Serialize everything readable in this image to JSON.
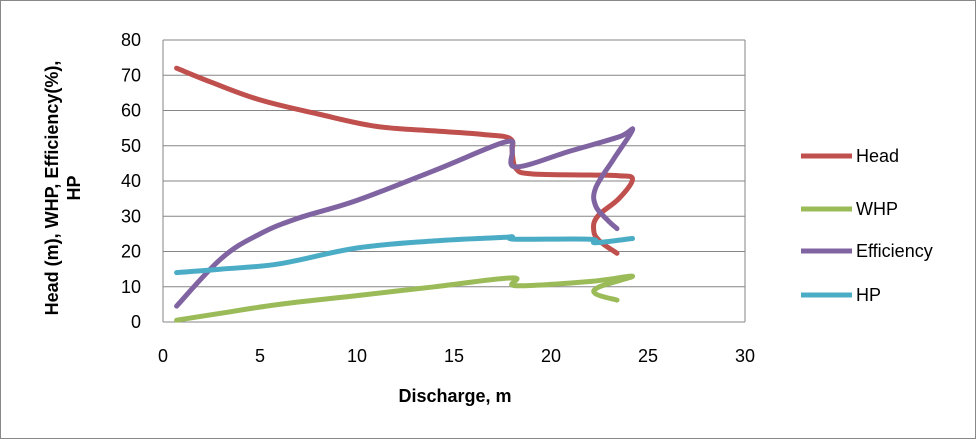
{
  "chart_data": {
    "type": "line",
    "title": "",
    "xlabel": "Discharge, m",
    "ylabel_line1": "Head (m), WHP,  Efficiency(%),",
    "ylabel_line2": "HP",
    "xlim": [
      0,
      30
    ],
    "ylim": [
      0,
      80
    ],
    "xticks": [
      0,
      5,
      10,
      15,
      20,
      25,
      30
    ],
    "yticks": [
      0,
      10,
      20,
      30,
      40,
      50,
      60,
      70,
      80
    ],
    "grid": "horizontal",
    "legend_position": "right",
    "series": [
      {
        "name": "Head",
        "color": "#c0504d",
        "x": [
          0.7,
          2.5,
          5,
          8,
          11,
          14,
          16.5,
          17.9,
          18.0,
          18.2,
          19,
          22,
          23.5,
          24.2,
          23.5,
          22.4,
          22.2,
          22.5,
          23.4
        ],
        "y": [
          72,
          68,
          63,
          59,
          55.5,
          54.2,
          53.2,
          52,
          48,
          43.5,
          42,
          41.7,
          41.5,
          40.5,
          35,
          30,
          26,
          23,
          19.5
        ]
      },
      {
        "name": "WHP",
        "color": "#9bbb59",
        "x": [
          0.7,
          3,
          6,
          10,
          14,
          18.0,
          18.2,
          22,
          24.2,
          22.5,
          22.3,
          23.4
        ],
        "y": [
          0.5,
          2.5,
          5,
          7.5,
          10,
          12.5,
          10.3,
          11.5,
          13,
          10,
          8,
          6.2
        ]
      },
      {
        "name": "Efficiency",
        "color": "#8064a2",
        "x": [
          0.7,
          3,
          5,
          7,
          10,
          14,
          17.6,
          18.0,
          18.2,
          21,
          23.5,
          24.2,
          23.2,
          22.3,
          22.3,
          22.9,
          23.4
        ],
        "y": [
          4.5,
          18,
          25,
          29.5,
          34.5,
          43,
          51,
          49,
          44,
          48.5,
          52.5,
          54.5,
          46,
          38,
          33,
          29,
          26.5
        ]
      },
      {
        "name": "HP",
        "color": "#4bacc6",
        "x": [
          0.7,
          3,
          6,
          10,
          14,
          17.5,
          18.0,
          18.2,
          22,
          22.3,
          24.2
        ],
        "y": [
          14,
          15,
          16.5,
          21,
          23,
          24,
          24.2,
          23.5,
          23.5,
          22.5,
          23.7
        ]
      }
    ]
  }
}
